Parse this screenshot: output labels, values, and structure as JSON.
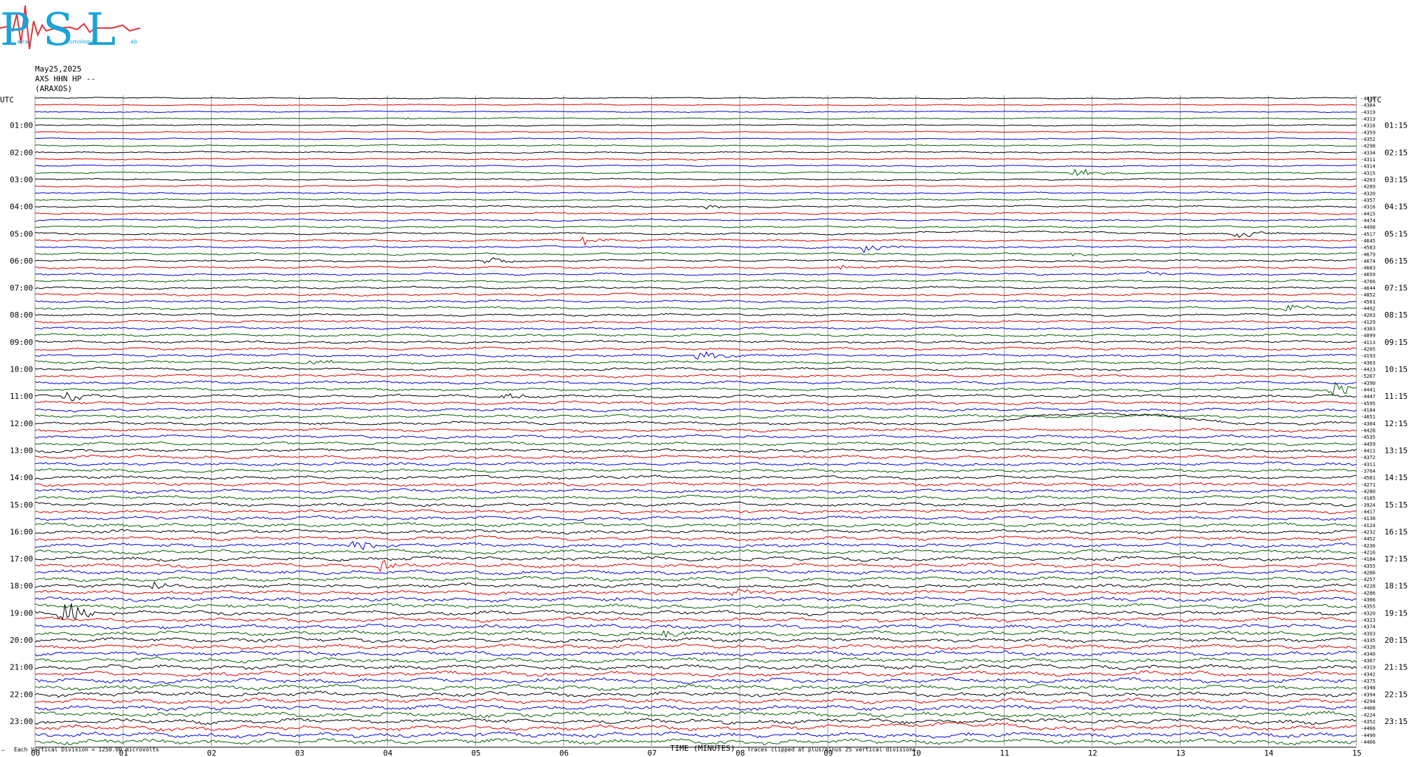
{
  "logo": {
    "text": "PSL",
    "small_text": [
      "atras",
      "eismology",
      "ab"
    ],
    "colors": {
      "letters": "#1aa3d9",
      "wave": "#e8303a"
    }
  },
  "header": {
    "date": "May25,2025",
    "station": "AXS HHN HP --",
    "site": "(ARAXOS)"
  },
  "colors": {
    "trace_cycle": [
      "#000000",
      "#e00000",
      "#0000e0",
      "#006000"
    ],
    "grid": "#808080"
  },
  "chart_data": {
    "type": "line",
    "title": "",
    "xlabel": "TIME (MINUTES)",
    "x_range": [
      0,
      15
    ],
    "x_ticks": [
      "00",
      "01",
      "02",
      "03",
      "04",
      "05",
      "06",
      "07",
      "08",
      "09",
      "10",
      "11",
      "12",
      "13",
      "14",
      "15"
    ],
    "row_interval_minutes": 15,
    "rows_count": 96,
    "left_header": "UTC",
    "right_header": "UTC",
    "left_labels": [
      "01:00",
      "02:00",
      "03:00",
      "04:00",
      "05:00",
      "06:00",
      "07:00",
      "08:00",
      "09:00",
      "10:00",
      "11:00",
      "12:00",
      "13:00",
      "14:00",
      "15:00",
      "16:00",
      "17:00",
      "18:00",
      "19:00",
      "20:00",
      "21:00",
      "22:00",
      "23:00"
    ],
    "right_labels": [
      "01:15",
      "02:15",
      "03:15",
      "04:15",
      "05:15",
      "06:15",
      "07:15",
      "08:15",
      "09:15",
      "10:15",
      "11:15",
      "12:15",
      "13:15",
      "14:15",
      "15:15",
      "16:15",
      "17:15",
      "18:15",
      "19:15",
      "20:15",
      "21:15",
      "22:15",
      "23:15"
    ],
    "trace_offsets": [
      -4610,
      -4384,
      -4319,
      -4313,
      -4316,
      -4359,
      -4352,
      -4298,
      -4334,
      -4311,
      -4314,
      -4315,
      -4263,
      -4289,
      -4320,
      -4357,
      -4316,
      -4415,
      -4474,
      -4498,
      -4517,
      -4645,
      -4583,
      -4679,
      -4674,
      -4683,
      -4659,
      -4766,
      -4644,
      -4852,
      -4501,
      -4492,
      -4203,
      -4129,
      -4303,
      -4099,
      -4113,
      -4205,
      -4193,
      -4363,
      -4423,
      -5267,
      -4390,
      -4441,
      -4447,
      -4595,
      -4184,
      -4651,
      -4304,
      -4428,
      -4535,
      -4459,
      -4411,
      -4372,
      -4311,
      -3764,
      -4581,
      -4271,
      -4280,
      -4185,
      -3924,
      -4417,
      -4138,
      -4124,
      -4232,
      -4452,
      -4236,
      -4216,
      -4184,
      -4355,
      -4286,
      -4257,
      -4228,
      -4286,
      -4366,
      -4355,
      -4320,
      -4323,
      -4374,
      -4393,
      -4335,
      -4326,
      -4340,
      -4367,
      -4319,
      -4342,
      -4375,
      -4348,
      -4394,
      -4294,
      -4468,
      -4224,
      -4352,
      -4466,
      -4490,
      -4466
    ],
    "events": [
      {
        "row": 3,
        "minute": 4.2,
        "amplitude": 2
      },
      {
        "row": 11,
        "minute": 11.8,
        "amplitude": 9
      },
      {
        "row": 16,
        "minute": 7.6,
        "amplitude": 4
      },
      {
        "row": 20,
        "minute": 13.6,
        "amplitude": 10
      },
      {
        "row": 20,
        "minute": 9.9,
        "amplitude": 3,
        "slow": true
      },
      {
        "row": 21,
        "minute": 6.2,
        "amplitude": 7
      },
      {
        "row": 22,
        "minute": 9.4,
        "amplitude": 7
      },
      {
        "row": 23,
        "minute": 11.7,
        "amplitude": 3
      },
      {
        "row": 24,
        "minute": 5.1,
        "amplitude": 6
      },
      {
        "row": 25,
        "minute": 9.1,
        "amplitude": 4
      },
      {
        "row": 26,
        "minute": 12.6,
        "amplitude": 5
      },
      {
        "row": 31,
        "minute": 14.2,
        "amplitude": 8
      },
      {
        "row": 38,
        "minute": 7.5,
        "amplitude": 9
      },
      {
        "row": 39,
        "minute": 3.1,
        "amplitude": 5
      },
      {
        "row": 44,
        "minute": 0.35,
        "amplitude": 12
      },
      {
        "row": 44,
        "minute": 5.3,
        "amplitude": 6
      },
      {
        "row": 43,
        "minute": 14.7,
        "amplitude": 16
      },
      {
        "row": 48,
        "minute": 11.0,
        "amplitude": 14,
        "slow": true
      },
      {
        "row": 57,
        "minute": 5.8,
        "amplitude": 3
      },
      {
        "row": 66,
        "minute": 3.6,
        "amplitude": 10
      },
      {
        "row": 69,
        "minute": 3.9,
        "amplitude": 10
      },
      {
        "row": 68,
        "minute": 12.2,
        "amplitude": 5
      },
      {
        "row": 72,
        "minute": 1.3,
        "amplitude": 7
      },
      {
        "row": 73,
        "minute": 7.9,
        "amplitude": 6
      },
      {
        "row": 74,
        "minute": 6.6,
        "amplitude": 3
      },
      {
        "row": 76,
        "minute": 0.3,
        "amplitude": 26
      },
      {
        "row": 79,
        "minute": 7.1,
        "amplitude": 9
      },
      {
        "row": 88,
        "minute": 10.9,
        "amplitude": 3
      },
      {
        "row": 93,
        "minute": 9.1,
        "amplitude": 6,
        "slow": true
      }
    ]
  },
  "footer": {
    "left_text": "Each Vertical Division = 1250.00 microvolts",
    "axis_title": "TIME (MINUTES)",
    "clip_text": "Traces clipped at plus/minus 25 vertical divisions",
    "corner_mark": "–"
  }
}
